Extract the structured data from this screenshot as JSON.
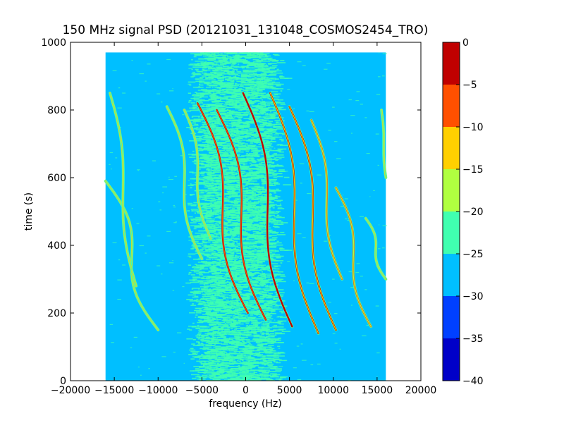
{
  "chart_data": {
    "type": "heatmap",
    "title": "150 MHz signal PSD (20121031_131048_COSMOS2454_TRO)",
    "xlabel": "frequency (Hz)",
    "ylabel": "time (s)",
    "xlim": [
      -20000,
      20000
    ],
    "ylim": [
      0,
      1000
    ],
    "data_extent": {
      "x": [
        -16000,
        16000
      ],
      "y": [
        0,
        970
      ]
    },
    "x_ticks": [
      -20000,
      -15000,
      -10000,
      -5000,
      0,
      5000,
      10000,
      15000,
      20000
    ],
    "x_tick_labels": [
      "−20000",
      "−15000",
      "−10000",
      "−5000",
      "0",
      "5000",
      "10000",
      "15000",
      "20000"
    ],
    "y_ticks": [
      0,
      200,
      400,
      600,
      800,
      1000
    ],
    "y_tick_labels": [
      "0",
      "200",
      "400",
      "600",
      "800",
      "1000"
    ],
    "background_level_range": [
      -30,
      -25
    ],
    "noise_band_frequency_range": [
      -6000,
      3500
    ],
    "noise_band_level_range": [
      -25,
      -20
    ],
    "signal_traces": [
      {
        "freq_top": -16000,
        "freq_bottom": -10000,
        "time_top": 590,
        "time_bottom": 150,
        "peak_level": -20
      },
      {
        "freq_top": -15500,
        "freq_bottom": -12500,
        "time_top": 850,
        "time_bottom": 280,
        "peak_level": -20
      },
      {
        "freq_top": -9000,
        "freq_bottom": -5000,
        "time_top": 810,
        "time_bottom": 360,
        "peak_level": -20
      },
      {
        "freq_top": -7000,
        "freq_bottom": -4000,
        "time_top": 800,
        "time_bottom": 420,
        "peak_level": -20
      },
      {
        "freq_top": -5500,
        "freq_bottom": 250,
        "time_top": 820,
        "time_bottom": 200,
        "peak_level": -5
      },
      {
        "freq_top": -3300,
        "freq_bottom": 2300,
        "time_top": 800,
        "time_bottom": 180,
        "peak_level": -5
      },
      {
        "freq_top": -300,
        "freq_bottom": 5300,
        "time_top": 850,
        "time_bottom": 160,
        "peak_level": 0
      },
      {
        "freq_top": 2800,
        "freq_bottom": 8300,
        "time_top": 850,
        "time_bottom": 140,
        "peak_level": -10
      },
      {
        "freq_top": 5000,
        "freq_bottom": 10300,
        "time_top": 810,
        "time_bottom": 150,
        "peak_level": -10
      },
      {
        "freq_top": 7500,
        "freq_bottom": 11000,
        "time_top": 770,
        "time_bottom": 300,
        "peak_level": -15
      },
      {
        "freq_top": 10300,
        "freq_bottom": 14300,
        "time_top": 570,
        "time_bottom": 160,
        "peak_level": -15
      },
      {
        "freq_top": 13700,
        "freq_bottom": 16000,
        "time_top": 480,
        "time_bottom": 300,
        "peak_level": -20
      },
      {
        "freq_top": 15500,
        "freq_bottom": 16000,
        "time_top": 800,
        "time_bottom": 600,
        "peak_level": -20
      }
    ],
    "colorbar": {
      "range": [
        -40,
        0
      ],
      "ticks": [
        0,
        -5,
        -10,
        -15,
        -20,
        -25,
        -30,
        -35,
        -40
      ],
      "tick_labels": [
        "0",
        "−5",
        "−10",
        "−15",
        "−20",
        "−25",
        "−30",
        "−35",
        "−40"
      ],
      "levels": [
        {
          "from": -40,
          "to": -35,
          "color": "#0000c8"
        },
        {
          "from": -35,
          "to": -30,
          "color": "#0040ff"
        },
        {
          "from": -30,
          "to": -25,
          "color": "#00bfff"
        },
        {
          "from": -25,
          "to": -20,
          "color": "#40ffb0"
        },
        {
          "from": -20,
          "to": -15,
          "color": "#b0ff40"
        },
        {
          "from": -15,
          "to": -10,
          "color": "#ffd000"
        },
        {
          "from": -10,
          "to": -5,
          "color": "#ff5000"
        },
        {
          "from": -5,
          "to": 0,
          "color": "#c00000"
        }
      ]
    }
  }
}
